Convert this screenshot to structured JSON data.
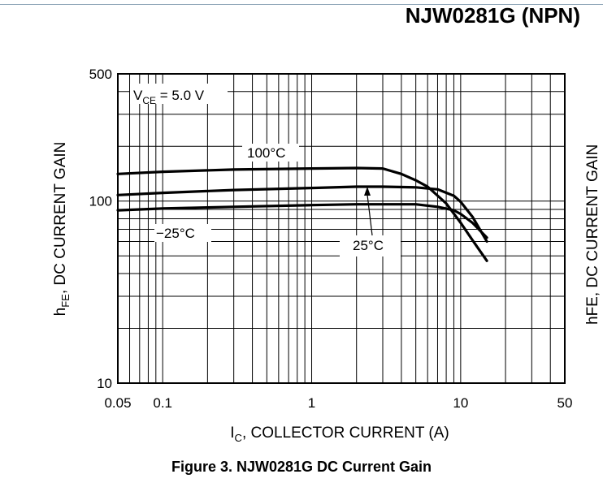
{
  "doc_title": "NJW0281G (NPN)",
  "caption": "Figure 3. NJW0281G DC Current Gain",
  "adjacent_axis_fragment": "hFE, DC CURRENT GAIN",
  "chart_data": {
    "type": "line",
    "xscale": "log",
    "yscale": "log",
    "xlim": [
      0.05,
      50
    ],
    "ylim": [
      10,
      500
    ],
    "grid": true,
    "xticks": [
      {
        "value": 0.05,
        "label": "0.05"
      },
      {
        "value": 0.1,
        "label": "0.1"
      },
      {
        "value": 1,
        "label": "1"
      },
      {
        "value": 10,
        "label": "10"
      },
      {
        "value": 50,
        "label": "50"
      }
    ],
    "yticks": [
      {
        "value": 10,
        "label": "10"
      },
      {
        "value": 100,
        "label": "100"
      },
      {
        "value": 500,
        "label": "500"
      }
    ],
    "xlabel": {
      "main": "I",
      "sub": "C",
      "rest": ", COLLECTOR CURRENT (A)"
    },
    "ylabel": {
      "main": "h",
      "sub": "FE",
      "rest": ", DC CURRENT GAIN"
    },
    "condition": {
      "main": "V",
      "sub": "CE",
      "rest": " = 5.0 V"
    },
    "series": [
      {
        "name": "100°C",
        "x": [
          0.05,
          0.1,
          0.3,
          1,
          2,
          3,
          4,
          5,
          6,
          8,
          10,
          12,
          15
        ],
        "y": [
          141,
          145,
          149,
          151,
          152,
          151,
          141,
          130,
          120,
          97,
          76,
          61,
          47
        ]
      },
      {
        "name": "25°C",
        "x": [
          0.05,
          0.1,
          0.3,
          1,
          2,
          3,
          5,
          7,
          9,
          10,
          12,
          15
        ],
        "y": [
          108,
          111,
          115,
          118,
          120,
          120,
          119,
          116,
          107,
          99,
          82,
          60
        ]
      },
      {
        "name": "−25°C",
        "x": [
          0.05,
          0.1,
          0.3,
          1,
          2,
          3,
          5,
          7,
          9,
          10,
          12,
          15
        ],
        "y": [
          89,
          91,
          93,
          95,
          96,
          96,
          96,
          93,
          89,
          85,
          76,
          63
        ]
      }
    ]
  }
}
